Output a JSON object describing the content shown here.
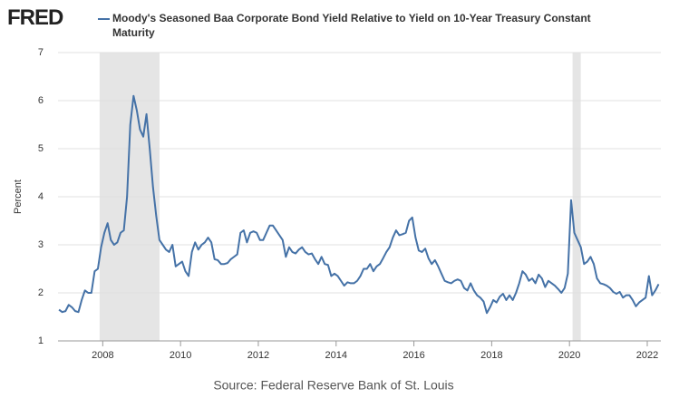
{
  "logo": "FRED",
  "chart_data": {
    "type": "line",
    "source": "Source: Federal Reserve Bank of St. Louis",
    "y_label": "Percent",
    "xlim": [
      2006.85,
      2022.35
    ],
    "xticks": [
      2008,
      2010,
      2012,
      2014,
      2016,
      2018,
      2020,
      2022
    ],
    "ylim": [
      1,
      7
    ],
    "yticks": [
      1,
      2,
      3,
      4,
      5,
      6,
      7
    ],
    "grid": true,
    "recessions": [
      [
        2007.92,
        2009.46
      ],
      [
        2020.08,
        2020.29
      ]
    ],
    "x": [
      2006.875,
      2006.958,
      2007.042,
      2007.125,
      2007.208,
      2007.292,
      2007.375,
      2007.458,
      2007.542,
      2007.625,
      2007.708,
      2007.792,
      2007.875,
      2007.958,
      2008.042,
      2008.125,
      2008.208,
      2008.292,
      2008.375,
      2008.458,
      2008.542,
      2008.625,
      2008.708,
      2008.792,
      2008.875,
      2008.958,
      2009.042,
      2009.125,
      2009.208,
      2009.292,
      2009.375,
      2009.458,
      2009.542,
      2009.625,
      2009.708,
      2009.792,
      2009.875,
      2009.958,
      2010.042,
      2010.125,
      2010.208,
      2010.292,
      2010.375,
      2010.458,
      2010.542,
      2010.625,
      2010.708,
      2010.792,
      2010.875,
      2010.958,
      2011.042,
      2011.125,
      2011.208,
      2011.292,
      2011.375,
      2011.458,
      2011.542,
      2011.625,
      2011.708,
      2011.792,
      2011.875,
      2011.958,
      2012.042,
      2012.125,
      2012.208,
      2012.292,
      2012.375,
      2012.458,
      2012.542,
      2012.625,
      2012.708,
      2012.792,
      2012.875,
      2012.958,
      2013.042,
      2013.125,
      2013.208,
      2013.292,
      2013.375,
      2013.458,
      2013.542,
      2013.625,
      2013.708,
      2013.792,
      2013.875,
      2013.958,
      2014.042,
      2014.125,
      2014.208,
      2014.292,
      2014.375,
      2014.458,
      2014.542,
      2014.625,
      2014.708,
      2014.792,
      2014.875,
      2014.958,
      2015.042,
      2015.125,
      2015.208,
      2015.292,
      2015.375,
      2015.458,
      2015.542,
      2015.625,
      2015.708,
      2015.792,
      2015.875,
      2015.958,
      2016.042,
      2016.125,
      2016.208,
      2016.292,
      2016.375,
      2016.458,
      2016.542,
      2016.625,
      2016.708,
      2016.792,
      2016.875,
      2016.958,
      2017.042,
      2017.125,
      2017.208,
      2017.292,
      2017.375,
      2017.458,
      2017.542,
      2017.625,
      2017.708,
      2017.792,
      2017.875,
      2017.958,
      2018.042,
      2018.125,
      2018.208,
      2018.292,
      2018.375,
      2018.458,
      2018.542,
      2018.625,
      2018.708,
      2018.792,
      2018.875,
      2018.958,
      2019.042,
      2019.125,
      2019.208,
      2019.292,
      2019.375,
      2019.458,
      2019.542,
      2019.625,
      2019.708,
      2019.792,
      2019.875,
      2019.958,
      2020.042,
      2020.125,
      2020.208,
      2020.292,
      2020.375,
      2020.458,
      2020.542,
      2020.625,
      2020.708,
      2020.792,
      2020.875,
      2020.958,
      2021.042,
      2021.125,
      2021.208,
      2021.292,
      2021.375,
      2021.458,
      2021.542,
      2021.625,
      2021.708,
      2021.792,
      2021.875,
      2021.958,
      2022.042,
      2022.125,
      2022.208,
      2022.292
    ],
    "series": [
      {
        "name": "Moody's Seasoned Baa Corporate Bond Yield Relative to Yield on 10-Year Treasury Constant Maturity",
        "color": "#4572a7",
        "values": [
          1.65,
          1.6,
          1.62,
          1.75,
          1.7,
          1.62,
          1.6,
          1.85,
          2.05,
          2.0,
          2.0,
          2.45,
          2.5,
          2.95,
          3.25,
          3.45,
          3.1,
          3.0,
          3.05,
          3.25,
          3.3,
          4.0,
          5.5,
          6.1,
          5.8,
          5.4,
          5.25,
          5.72,
          5.0,
          4.2,
          3.6,
          3.1,
          3.0,
          2.9,
          2.85,
          3.0,
          2.55,
          2.6,
          2.65,
          2.45,
          2.35,
          2.85,
          3.05,
          2.9,
          3.0,
          3.05,
          3.15,
          3.05,
          2.7,
          2.68,
          2.6,
          2.6,
          2.62,
          2.7,
          2.75,
          2.8,
          3.25,
          3.3,
          3.05,
          3.25,
          3.28,
          3.25,
          3.1,
          3.1,
          3.25,
          3.4,
          3.4,
          3.3,
          3.2,
          3.1,
          2.75,
          2.95,
          2.85,
          2.82,
          2.9,
          2.95,
          2.85,
          2.8,
          2.82,
          2.7,
          2.6,
          2.75,
          2.6,
          2.58,
          2.35,
          2.4,
          2.35,
          2.25,
          2.15,
          2.22,
          2.2,
          2.2,
          2.25,
          2.35,
          2.5,
          2.5,
          2.6,
          2.45,
          2.55,
          2.6,
          2.72,
          2.85,
          2.95,
          3.15,
          3.3,
          3.2,
          3.22,
          3.25,
          3.5,
          3.57,
          3.15,
          2.88,
          2.85,
          2.92,
          2.72,
          2.6,
          2.68,
          2.55,
          2.4,
          2.25,
          2.22,
          2.2,
          2.25,
          2.28,
          2.25,
          2.1,
          2.05,
          2.2,
          2.05,
          1.95,
          1.9,
          1.82,
          1.58,
          1.7,
          1.85,
          1.8,
          1.92,
          1.98,
          1.85,
          1.95,
          1.85,
          2.0,
          2.2,
          2.45,
          2.38,
          2.25,
          2.3,
          2.2,
          2.38,
          2.3,
          2.12,
          2.25,
          2.2,
          2.15,
          2.08,
          2.0,
          2.1,
          2.4,
          3.93,
          3.25,
          3.1,
          2.95,
          2.6,
          2.65,
          2.75,
          2.6,
          2.3,
          2.2,
          2.18,
          2.15,
          2.1,
          2.02,
          1.98,
          2.02,
          1.9,
          1.95,
          1.95,
          1.85,
          1.72,
          1.8,
          1.85,
          1.9,
          2.35,
          1.95,
          2.05,
          2.18
        ]
      }
    ]
  }
}
